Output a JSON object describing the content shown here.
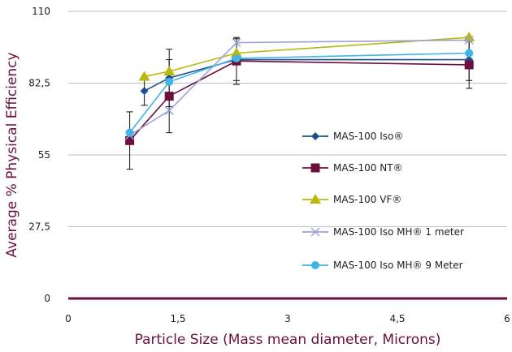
{
  "chart_data": {
    "type": "line",
    "title": "",
    "xlabel": "Particle Size (Mass mean diameter, Microns)",
    "ylabel": "Average % Physical Efficiency",
    "xlim": [
      0,
      6
    ],
    "ylim": [
      0,
      110
    ],
    "x_ticks": [
      "0",
      "1,5",
      "3",
      "4,5",
      "6"
    ],
    "x_tick_values": [
      0,
      1.5,
      3,
      4.5,
      6
    ],
    "y_ticks": [
      "0",
      "27,5",
      "55",
      "82,5",
      "110"
    ],
    "y_tick_values": [
      0,
      27.5,
      55,
      82.5,
      110
    ],
    "grid": "horizontal",
    "legend_position": "right",
    "series": [
      {
        "name": "MAS-100 Iso®",
        "color": "#1f4e8c",
        "marker": "diamond",
        "points": [
          {
            "x": 1.04,
            "y": 79.5,
            "err": 5.5
          },
          {
            "x": 1.38,
            "y": 84.5,
            "err": 11
          },
          {
            "x": 2.3,
            "y": 91.5,
            "err": 8
          },
          {
            "x": 5.48,
            "y": 91.5,
            "err": 8
          }
        ]
      },
      {
        "name": "MAS-100 NT®",
        "color": "#6b0f3c",
        "marker": "square",
        "points": [
          {
            "x": 0.84,
            "y": 60.5,
            "err": 11
          },
          {
            "x": 1.38,
            "y": 77.5,
            "err": 14
          },
          {
            "x": 2.3,
            "y": 91,
            "err": 9
          },
          {
            "x": 5.48,
            "y": 89.5,
            "err": 9
          }
        ]
      },
      {
        "name": "MAS-100 VF®",
        "color": "#b9b90c",
        "marker": "triangle",
        "points": [
          {
            "x": 1.04,
            "y": 85,
            "err": 0
          },
          {
            "x": 1.38,
            "y": 87,
            "err": 0
          },
          {
            "x": 2.3,
            "y": 94,
            "err": 0
          },
          {
            "x": 5.48,
            "y": 100,
            "err": 0
          }
        ]
      },
      {
        "name": "MAS-100 Iso MH® 1 meter",
        "color": "#9ba3d6",
        "marker": "x",
        "points": [
          {
            "x": 0.84,
            "y": 62.5,
            "err": 0
          },
          {
            "x": 1.38,
            "y": 72,
            "err": 0
          },
          {
            "x": 2.3,
            "y": 98,
            "err": 0
          },
          {
            "x": 5.48,
            "y": 99,
            "err": 0
          }
        ]
      },
      {
        "name": "MAS-100 Iso MH® 9 Meter",
        "color": "#41b4e8",
        "marker": "circle",
        "points": [
          {
            "x": 0.84,
            "y": 63.5,
            "err": 0
          },
          {
            "x": 1.38,
            "y": 83,
            "err": 0
          },
          {
            "x": 2.3,
            "y": 92,
            "err": 0
          },
          {
            "x": 5.48,
            "y": 94,
            "err": 0
          }
        ]
      }
    ]
  }
}
